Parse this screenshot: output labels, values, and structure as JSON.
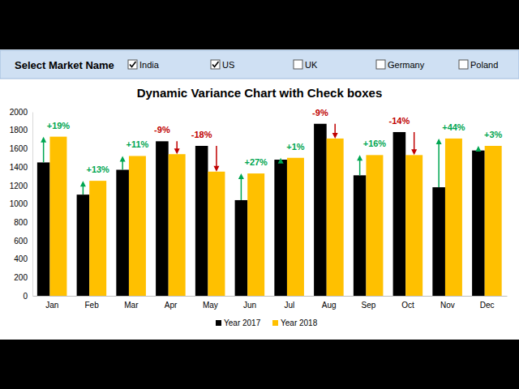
{
  "header": {
    "label": "Select Market Name",
    "options": [
      {
        "name": "India",
        "checked": true
      },
      {
        "name": "US",
        "checked": true
      },
      {
        "name": "UK",
        "checked": false
      },
      {
        "name": "Germany",
        "checked": false
      },
      {
        "name": "Poland",
        "checked": false
      }
    ]
  },
  "chart_data": {
    "type": "bar",
    "title": "Dynamic Variance Chart with Check boxes",
    "categories": [
      "Jan",
      "Feb",
      "Mar",
      "Apr",
      "May",
      "Jun",
      "Jul",
      "Aug",
      "Sep",
      "Oct",
      "Nov",
      "Dec"
    ],
    "series": [
      {
        "name": "Year 2017",
        "color": "#000000",
        "values": [
          1450,
          1100,
          1370,
          1680,
          1630,
          1040,
          1480,
          1870,
          1310,
          1780,
          1180,
          1580
        ]
      },
      {
        "name": "Year 2018",
        "color": "#ffc000",
        "values": [
          1730,
          1250,
          1520,
          1540,
          1350,
          1330,
          1500,
          1710,
          1530,
          1530,
          1710,
          1630
        ]
      }
    ],
    "annotations": [
      "+19%",
      "+13%",
      "+11%",
      "-9%",
      "-18%",
      "+27%",
      "+1%",
      "-9%",
      "+16%",
      "-14%",
      "+44%",
      "+3%"
    ],
    "ylim": [
      0,
      2000
    ],
    "yticks": [
      0,
      200,
      400,
      600,
      800,
      1000,
      1200,
      1400,
      1600,
      1800,
      2000
    ],
    "grid": false,
    "legend": "bottom"
  }
}
